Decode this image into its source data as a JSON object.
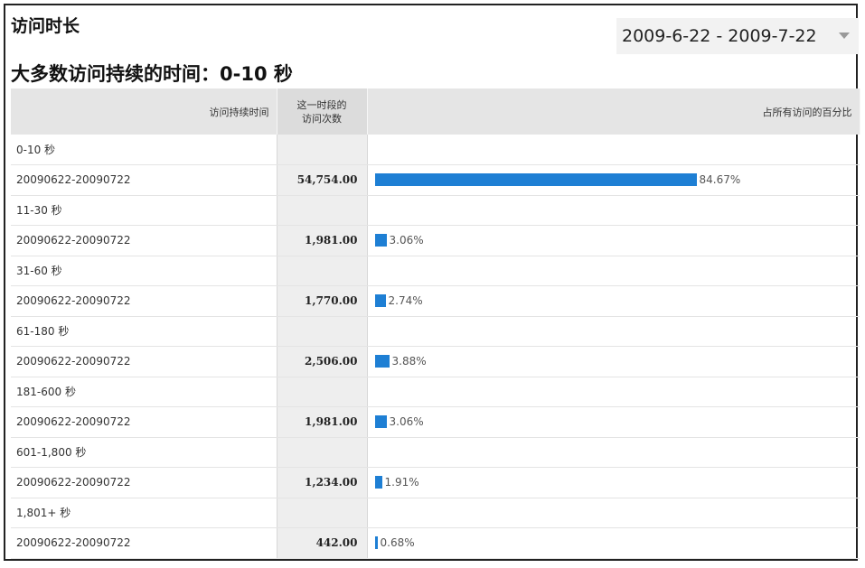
{
  "header": {
    "title": "访问时长",
    "date_range": "2009-6-22 - 2009-7-22",
    "headline": "大多数访问持续的时间：0-10 秒"
  },
  "table": {
    "columns": {
      "duration": "访问持续时间",
      "visits_line1": "这一时段的",
      "visits_line2": "访问次数",
      "percent": "占所有访问的百分比"
    },
    "groups": [
      {
        "label": "0-10 秒",
        "date": "20090622-20090722",
        "visits": "54,754.00",
        "percent": "84.67%",
        "fraction": 0.8467
      },
      {
        "label": "11-30 秒",
        "date": "20090622-20090722",
        "visits": "1,981.00",
        "percent": "3.06%",
        "fraction": 0.0306
      },
      {
        "label": "31-60 秒",
        "date": "20090622-20090722",
        "visits": "1,770.00",
        "percent": "2.74%",
        "fraction": 0.0274
      },
      {
        "label": "61-180 秒",
        "date": "20090622-20090722",
        "visits": "2,506.00",
        "percent": "3.88%",
        "fraction": 0.0388
      },
      {
        "label": "181-600 秒",
        "date": "20090622-20090722",
        "visits": "1,981.00",
        "percent": "3.06%",
        "fraction": 0.0306
      },
      {
        "label": "601-1,800 秒",
        "date": "20090622-20090722",
        "visits": "1,234.00",
        "percent": "1.91%",
        "fraction": 0.0191
      },
      {
        "label": "1,801+ 秒",
        "date": "20090622-20090722",
        "visits": "442.00",
        "percent": "0.68%",
        "fraction": 0.0068
      }
    ]
  },
  "colors": {
    "bar": "#1e7fd4",
    "header_bg": "#e5e5e5"
  }
}
